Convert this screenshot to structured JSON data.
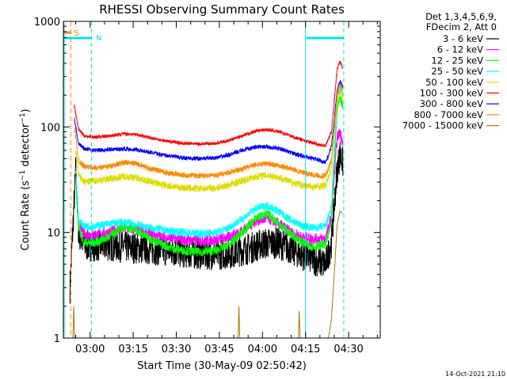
{
  "chart_data": {
    "type": "line",
    "title": "RHESSI Observing Summary Count Rates",
    "xlabel": "Start Time (30-May-09 02:50:42)",
    "ylabel_main": "Count Rate (s",
    "ylabel_sup1": "−1",
    "ylabel_mid": " detector",
    "ylabel_sup2": "−1",
    "ylabel_end": ")",
    "yscale": "log",
    "ylim": [
      1,
      1000
    ],
    "xlim_min": [
      170.7,
      281
    ],
    "x_ticks": [
      {
        "t": 180,
        "label": "03:00"
      },
      {
        "t": 195,
        "label": "03:15"
      },
      {
        "t": 210,
        "label": "03:30"
      },
      {
        "t": 225,
        "label": "03:45"
      },
      {
        "t": 240,
        "label": "04:00"
      },
      {
        "t": 255,
        "label": "04:15"
      },
      {
        "t": 270,
        "label": "04:30"
      }
    ],
    "y_ticks": [
      {
        "v": 1,
        "label": "1"
      },
      {
        "v": 10,
        "label": "10"
      },
      {
        "v": 100,
        "label": "100"
      },
      {
        "v": 1000,
        "label": "1000"
      }
    ],
    "legend_header": [
      "Det 1,3,4,5,6,9,",
      "FDecim 2, Att 0"
    ],
    "series": [
      {
        "name": "3 - 6 keV",
        "color": "#000000",
        "x": [
          173,
          175,
          176,
          178,
          182,
          188,
          194,
          200,
          206,
          212,
          218,
          224,
          230,
          235,
          240,
          245,
          249,
          252,
          255,
          258,
          262,
          264,
          266,
          267,
          268
        ],
        "y": [
          3,
          40,
          10,
          7.5,
          7.5,
          7.5,
          7.2,
          7,
          6.8,
          6.5,
          6.3,
          6.2,
          6.5,
          7,
          7.8,
          8,
          7.2,
          6.5,
          6,
          5.5,
          5,
          8,
          40,
          55,
          45
        ]
      },
      {
        "name": "6 - 12 keV",
        "color": "#ff00ff",
        "x": [
          175,
          176,
          178,
          182,
          186,
          192,
          196,
          200,
          206,
          212,
          218,
          224,
          228,
          233,
          238,
          242,
          246,
          250,
          254,
          258,
          262,
          264,
          266,
          267,
          268
        ],
        "y": [
          40,
          12,
          9.5,
          9.5,
          10,
          11,
          10.5,
          9.8,
          9,
          8.5,
          8.4,
          8.5,
          9,
          10.5,
          13,
          13.5,
          12,
          10,
          9,
          8.7,
          8.8,
          14,
          80,
          90,
          70
        ]
      },
      {
        "name": "12 - 25 keV",
        "color": "#00ff00",
        "x": [
          175,
          176,
          178,
          182,
          186,
          192,
          196,
          200,
          206,
          212,
          218,
          224,
          228,
          233,
          238,
          242,
          246,
          250,
          254,
          258,
          262,
          264,
          266,
          267,
          268
        ],
        "y": [
          30,
          11,
          8,
          8,
          9,
          11.5,
          10.5,
          9,
          7.5,
          6.8,
          6.5,
          6.8,
          7.5,
          10,
          14,
          15,
          12,
          9.5,
          8,
          7.3,
          7.8,
          12,
          150,
          190,
          160
        ]
      },
      {
        "name": "25 - 50 keV",
        "color": "#00ffff",
        "x": [
          175,
          176,
          178,
          182,
          186,
          192,
          196,
          200,
          206,
          212,
          218,
          224,
          228,
          233,
          238,
          242,
          246,
          250,
          254,
          258,
          262,
          264,
          266,
          267,
          268
        ],
        "y": [
          40,
          13,
          11.5,
          11.5,
          12,
          12.5,
          12,
          11.2,
          10.5,
          10,
          9.8,
          10,
          11,
          13.5,
          17,
          18,
          15.5,
          13,
          11.5,
          11,
          11.5,
          17,
          190,
          230,
          200
        ]
      },
      {
        "name": "50 - 100 keV",
        "color": "#dddd00",
        "x": [
          175,
          176,
          178,
          182,
          186,
          192,
          196,
          200,
          206,
          212,
          218,
          224,
          228,
          233,
          238,
          242,
          246,
          250,
          254,
          258,
          262,
          264,
          266,
          267,
          268
        ],
        "y": [
          60,
          35,
          30,
          31,
          32,
          34,
          33,
          31,
          28,
          26.5,
          26,
          26.5,
          28,
          31,
          34,
          35,
          33,
          30,
          28,
          27,
          28,
          40,
          170,
          220,
          190
        ]
      },
      {
        "name": "100 - 300 keV",
        "color": "#ff0000",
        "x": [
          174.5,
          176,
          178,
          182,
          186,
          192,
          196,
          200,
          206,
          212,
          218,
          224,
          228,
          233,
          238,
          242,
          246,
          250,
          254,
          258,
          262,
          264,
          266,
          267,
          268
        ],
        "y": [
          160,
          95,
          82,
          80,
          82,
          86,
          85,
          80,
          74,
          70,
          69,
          70,
          74,
          82,
          92,
          94,
          90,
          82,
          75,
          70,
          66,
          90,
          350,
          420,
          360
        ]
      },
      {
        "name": "300 - 800 keV",
        "color": "#0000ff",
        "x": [
          174.5,
          176,
          178,
          182,
          186,
          192,
          196,
          200,
          206,
          212,
          218,
          224,
          228,
          233,
          238,
          242,
          246,
          250,
          254,
          258,
          262,
          264,
          266,
          267,
          268
        ],
        "y": [
          120,
          70,
          62,
          60,
          61,
          62,
          61,
          58,
          54,
          51,
          50,
          51,
          54,
          60,
          65,
          65,
          62,
          57,
          53,
          50,
          46,
          65,
          220,
          270,
          240
        ]
      },
      {
        "name": "800 - 7000 keV",
        "color": "#ff8800",
        "x": [
          174.5,
          176,
          178,
          182,
          186,
          192,
          196,
          200,
          206,
          212,
          218,
          224,
          228,
          233,
          238,
          242,
          246,
          250,
          254,
          258,
          262,
          264,
          266,
          267,
          268
        ],
        "y": [
          100,
          48,
          42,
          41,
          42,
          46,
          45,
          41,
          37,
          35,
          34.5,
          35,
          37,
          40,
          44,
          45,
          43,
          40,
          37,
          35,
          34,
          48,
          200,
          250,
          220
        ]
      },
      {
        "name": "7000 - 15000 keV",
        "color": "#aa7700",
        "x": [
          174,
          174.3,
          174.6,
          231.5,
          231.8,
          232.1,
          252.5,
          252.8,
          253.1,
          260,
          263,
          264,
          265,
          266,
          267,
          268
        ],
        "y": [
          1,
          2,
          1,
          1,
          2,
          1,
          1,
          1.8,
          1,
          1,
          1,
          1.5,
          4,
          12,
          16,
          15
        ]
      }
    ],
    "annotations": {
      "orange_marker_x": 173.3,
      "orange_label": "S",
      "cyan_lines_x": [
        180.5,
        255,
        268.3
      ],
      "cyan_label": "N",
      "cyan_bars": [
        [
          170.7,
          180.5
        ],
        [
          255,
          268.3
        ]
      ]
    },
    "grid": false,
    "legend_position": "right"
  },
  "footer_timestamp": "14-Oct-2021 21:10"
}
